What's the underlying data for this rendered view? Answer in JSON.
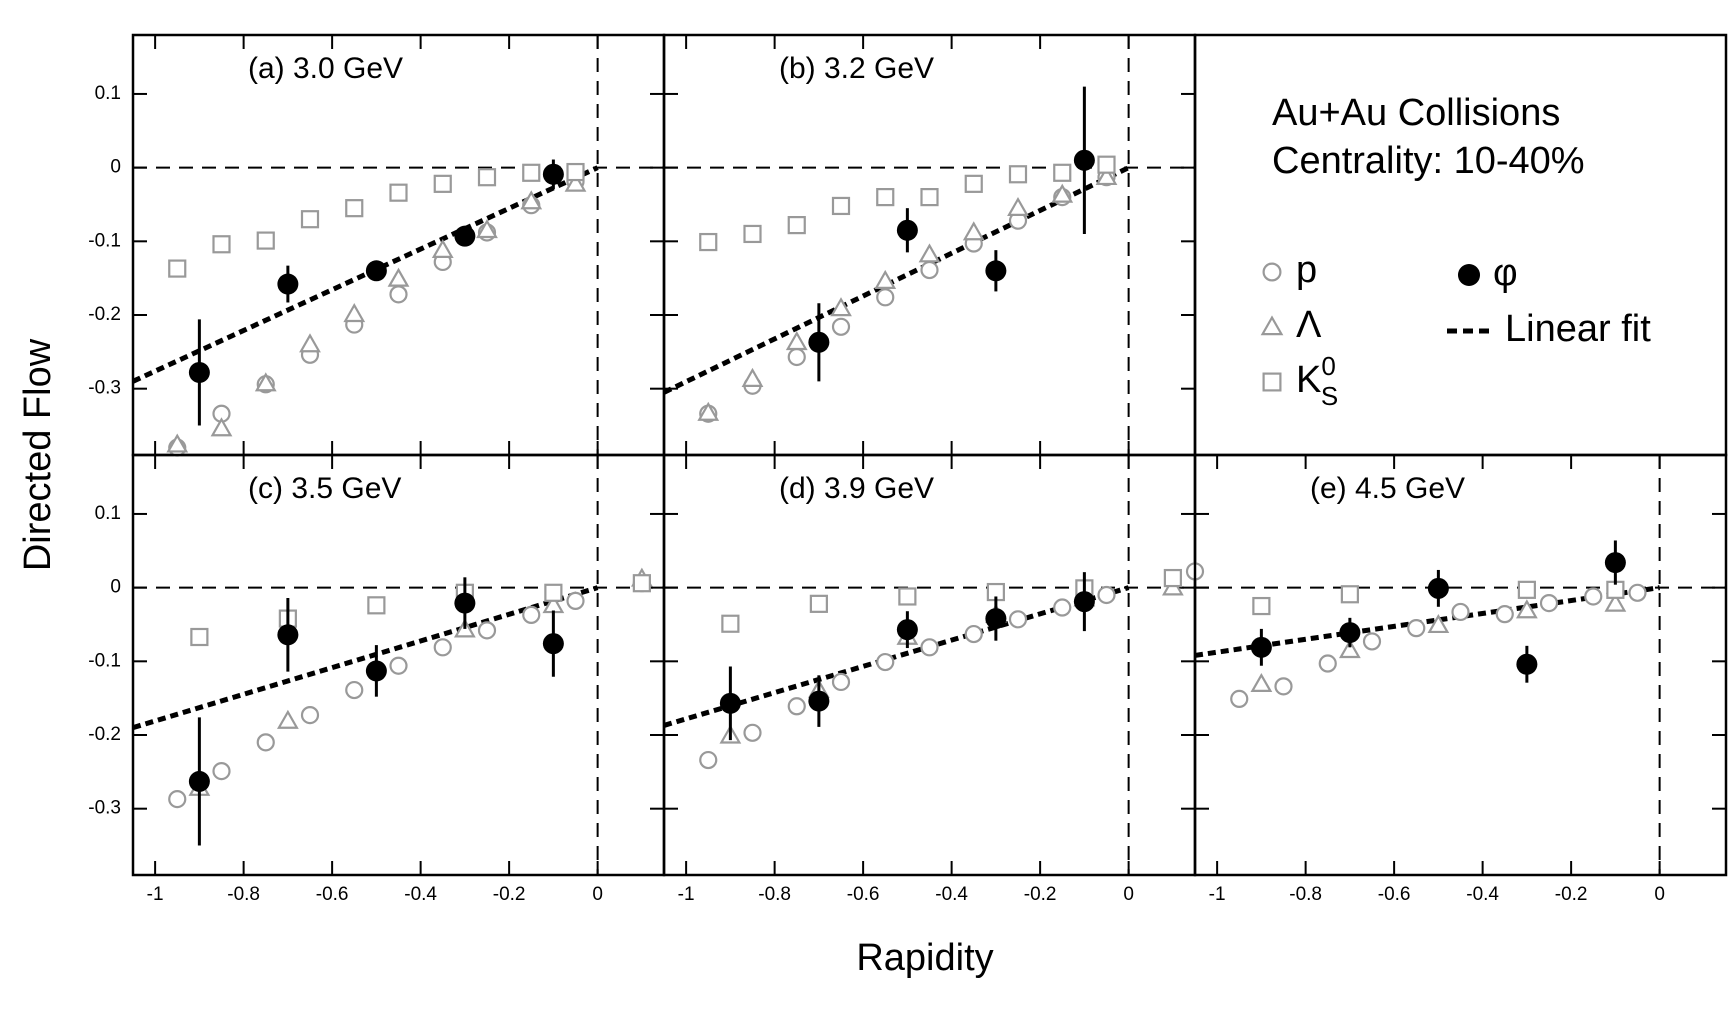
{
  "figure": {
    "ylabel": "Directed Flow",
    "xlabel": "Rapidity",
    "annotation": [
      "Au+Au Collisions",
      "Centrality: 10-40%"
    ],
    "legend": [
      {
        "name": "p",
        "marker": "circle",
        "color": "#999999"
      },
      {
        "name": "Λ",
        "marker": "triangle",
        "color": "#999999"
      },
      {
        "name": "K",
        "sub": "S",
        "sup": "0",
        "marker": "square",
        "color": "#999999"
      },
      {
        "name": "φ",
        "marker": "dot",
        "color": "#000000"
      },
      {
        "name": "Linear fit",
        "marker": "dash",
        "color": "#000000"
      }
    ]
  },
  "chart_data": [
    {
      "type": "scatter",
      "title": "(a) 3.0 GeV",
      "xlim": [
        -1.05,
        0.15
      ],
      "ylim": [
        -0.39,
        0.18
      ],
      "xticks": [
        -1,
        -0.8,
        -0.6,
        -0.4,
        -0.2,
        0
      ],
      "yticks": [
        -0.3,
        -0.2,
        -0.1,
        0,
        0.1
      ],
      "series": [
        {
          "marker": "circle",
          "color": "#999999",
          "x": [
            -0.95,
            -0.85,
            -0.75,
            -0.65,
            -0.55,
            -0.45,
            -0.35,
            -0.25,
            -0.15,
            -0.05
          ],
          "values": [
            -0.38,
            -0.334,
            -0.294,
            -0.254,
            -0.213,
            -0.172,
            -0.128,
            -0.088,
            -0.051,
            -0.019
          ]
        },
        {
          "marker": "triangle",
          "color": "#999999",
          "x": [
            -0.95,
            -0.85,
            -0.75,
            -0.65,
            -0.55,
            -0.45,
            -0.35,
            -0.25,
            -0.15,
            -0.05
          ],
          "values": [
            -0.376,
            -0.354,
            -0.293,
            -0.24,
            -0.199,
            -0.151,
            -0.112,
            -0.085,
            -0.046,
            -0.022
          ]
        },
        {
          "marker": "square",
          "color": "#999999",
          "x": [
            -0.95,
            -0.85,
            -0.75,
            -0.65,
            -0.55,
            -0.45,
            -0.35,
            -0.25,
            -0.15,
            -0.05
          ],
          "values": [
            -0.137,
            -0.104,
            -0.099,
            -0.07,
            -0.055,
            -0.034,
            -0.022,
            -0.013,
            -0.007,
            -0.006
          ]
        },
        {
          "marker": "dot",
          "color": "#000000",
          "x": [
            -0.9,
            -0.7,
            -0.5,
            -0.3,
            -0.1
          ],
          "values": [
            -0.278,
            -0.158,
            -0.14,
            -0.093,
            -0.009
          ],
          "errors": [
            0.072,
            0.025,
            0.012,
            0.01,
            0.02
          ]
        }
      ],
      "fit": {
        "x": [
          -1.05,
          0
        ],
        "values": [
          -0.29,
          0
        ]
      }
    },
    {
      "type": "scatter",
      "title": "(b) 3.2 GeV",
      "xlim": [
        -1.05,
        0.15
      ],
      "ylim": [
        -0.39,
        0.18
      ],
      "xticks": [
        -1,
        -0.8,
        -0.6,
        -0.4,
        -0.2,
        0
      ],
      "yticks": [
        -0.3,
        -0.2,
        -0.1,
        0,
        0.1
      ],
      "series": [
        {
          "marker": "circle",
          "color": "#999999",
          "x": [
            -0.95,
            -0.85,
            -0.75,
            -0.65,
            -0.55,
            -0.45,
            -0.35,
            -0.25,
            -0.15,
            -0.05
          ],
          "values": [
            -0.334,
            -0.296,
            -0.257,
            -0.216,
            -0.176,
            -0.139,
            -0.103,
            -0.072,
            -0.04,
            -0.013
          ]
        },
        {
          "marker": "triangle",
          "color": "#999999",
          "x": [
            -0.95,
            -0.85,
            -0.75,
            -0.65,
            -0.55,
            -0.45,
            -0.35,
            -0.25,
            -0.15,
            -0.05
          ],
          "values": [
            -0.333,
            -0.287,
            -0.237,
            -0.191,
            -0.154,
            -0.118,
            -0.088,
            -0.055,
            -0.037,
            -0.013
          ]
        },
        {
          "marker": "square",
          "color": "#999999",
          "x": [
            -0.95,
            -0.85,
            -0.75,
            -0.65,
            -0.55,
            -0.45,
            -0.35,
            -0.25,
            -0.15,
            -0.05
          ],
          "values": [
            -0.101,
            -0.09,
            -0.078,
            -0.052,
            -0.04,
            -0.04,
            -0.022,
            -0.009,
            -0.007,
            0.004
          ]
        },
        {
          "marker": "dot",
          "color": "#000000",
          "x": [
            -0.7,
            -0.5,
            -0.3,
            -0.1
          ],
          "values": [
            -0.237,
            -0.085,
            -0.14,
            0.01
          ],
          "errors": [
            0.053,
            0.03,
            0.028,
            0.1
          ]
        }
      ],
      "fit": {
        "x": [
          -1.05,
          0
        ],
        "values": [
          -0.305,
          0
        ]
      }
    },
    {
      "type": "scatter",
      "title": "(c) 3.5 GeV",
      "xlim": [
        -1.05,
        0.15
      ],
      "ylim": [
        -0.39,
        0.18
      ],
      "xticks": [
        -1,
        -0.8,
        -0.6,
        -0.4,
        -0.2,
        0
      ],
      "yticks": [
        -0.3,
        -0.2,
        -0.1,
        0,
        0.1
      ],
      "series": [
        {
          "marker": "circle",
          "color": "#999999",
          "x": [
            -0.95,
            -0.85,
            -0.75,
            -0.65,
            -0.55,
            -0.45,
            -0.35,
            -0.25,
            -0.15,
            -0.05,
            0.1
          ],
          "values": [
            -0.287,
            -0.249,
            -0.21,
            -0.173,
            -0.139,
            -0.106,
            -0.081,
            -0.058,
            -0.037,
            -0.018,
            0.006
          ]
        },
        {
          "marker": "triangle",
          "color": "#999999",
          "x": [
            -0.9,
            -0.7,
            -0.3,
            -0.1,
            0.1
          ],
          "values": [
            -0.272,
            -0.181,
            -0.057,
            -0.024,
            0.012
          ]
        },
        {
          "marker": "square",
          "color": "#999999",
          "x": [
            -0.9,
            -0.7,
            -0.5,
            -0.3,
            -0.1,
            0.1
          ],
          "values": [
            -0.067,
            -0.042,
            -0.024,
            -0.007,
            -0.007,
            0.006
          ]
        },
        {
          "marker": "dot",
          "color": "#000000",
          "x": [
            -0.9,
            -0.7,
            -0.5,
            -0.3,
            -0.1
          ],
          "values": [
            -0.263,
            -0.064,
            -0.113,
            -0.021,
            -0.076
          ],
          "errors": [
            0.087,
            0.05,
            0.035,
            0.035,
            0.045
          ]
        }
      ],
      "fit": {
        "x": [
          -1.05,
          0
        ],
        "values": [
          -0.19,
          0
        ]
      }
    },
    {
      "type": "scatter",
      "title": "(d) 3.9 GeV",
      "xlim": [
        -1.05,
        0.15
      ],
      "ylim": [
        -0.39,
        0.18
      ],
      "xticks": [
        -1,
        -0.8,
        -0.6,
        -0.4,
        -0.2,
        0
      ],
      "yticks": [
        -0.3,
        -0.2,
        -0.1,
        0,
        0.1
      ],
      "series": [
        {
          "marker": "circle",
          "color": "#999999",
          "x": [
            -0.95,
            -0.85,
            -0.75,
            -0.65,
            -0.55,
            -0.45,
            -0.35,
            -0.25,
            -0.15,
            -0.05,
            0.15
          ],
          "values": [
            -0.234,
            -0.197,
            -0.161,
            -0.128,
            -0.101,
            -0.081,
            -0.063,
            -0.043,
            -0.027,
            -0.01,
            0.022
          ]
        },
        {
          "marker": "triangle",
          "color": "#999999",
          "x": [
            -0.9,
            -0.7,
            -0.5,
            -0.3,
            -0.1,
            0.1
          ],
          "values": [
            -0.201,
            -0.139,
            -0.067,
            -0.037,
            -0.015,
            0
          ]
        },
        {
          "marker": "square",
          "color": "#999999",
          "x": [
            -0.9,
            -0.7,
            -0.5,
            -0.3,
            -0.1,
            0.1
          ],
          "values": [
            -0.049,
            -0.022,
            -0.012,
            -0.006,
            -0.001,
            0.013
          ]
        },
        {
          "marker": "dot",
          "color": "#000000",
          "x": [
            -0.9,
            -0.7,
            -0.5,
            -0.3,
            -0.1
          ],
          "values": [
            -0.157,
            -0.154,
            -0.057,
            -0.042,
            -0.019
          ],
          "errors": [
            0.05,
            0.035,
            0.025,
            0.03,
            0.04
          ]
        }
      ],
      "fit": {
        "x": [
          -1.05,
          0
        ],
        "values": [
          -0.187,
          0
        ]
      }
    },
    {
      "type": "scatter",
      "title": "(e) 4.5 GeV",
      "xlim": [
        -1.05,
        0.15
      ],
      "ylim": [
        -0.39,
        0.18
      ],
      "xticks": [
        -1,
        -0.8,
        -0.6,
        -0.4,
        -0.2,
        0
      ],
      "yticks": [
        -0.3,
        -0.2,
        -0.1,
        0,
        0.1
      ],
      "series": [
        {
          "marker": "circle",
          "color": "#999999",
          "x": [
            -0.95,
            -0.85,
            -0.75,
            -0.65,
            -0.55,
            -0.45,
            -0.35,
            -0.25,
            -0.15,
            -0.05
          ],
          "values": [
            -0.151,
            -0.134,
            -0.103,
            -0.073,
            -0.055,
            -0.033,
            -0.036,
            -0.021,
            -0.012,
            -0.007
          ]
        },
        {
          "marker": "triangle",
          "color": "#999999",
          "x": [
            -0.9,
            -0.7,
            -0.5,
            -0.3,
            -0.1
          ],
          "values": [
            -0.131,
            -0.085,
            -0.051,
            -0.031,
            -0.022
          ]
        },
        {
          "marker": "square",
          "color": "#999999",
          "x": [
            -0.9,
            -0.7,
            -0.3,
            -0.1
          ],
          "values": [
            -0.025,
            -0.009,
            -0.003,
            -0.003
          ]
        },
        {
          "marker": "dot",
          "color": "#000000",
          "x": [
            -0.9,
            -0.7,
            -0.5,
            -0.3,
            -0.1
          ],
          "values": [
            -0.081,
            -0.061,
            -0.001,
            -0.104,
            0.034
          ],
          "errors": [
            0.025,
            0.02,
            0.025,
            0.025,
            0.03
          ]
        }
      ],
      "fit": {
        "x": [
          -1.05,
          0
        ],
        "values": [
          -0.092,
          0
        ]
      }
    }
  ]
}
